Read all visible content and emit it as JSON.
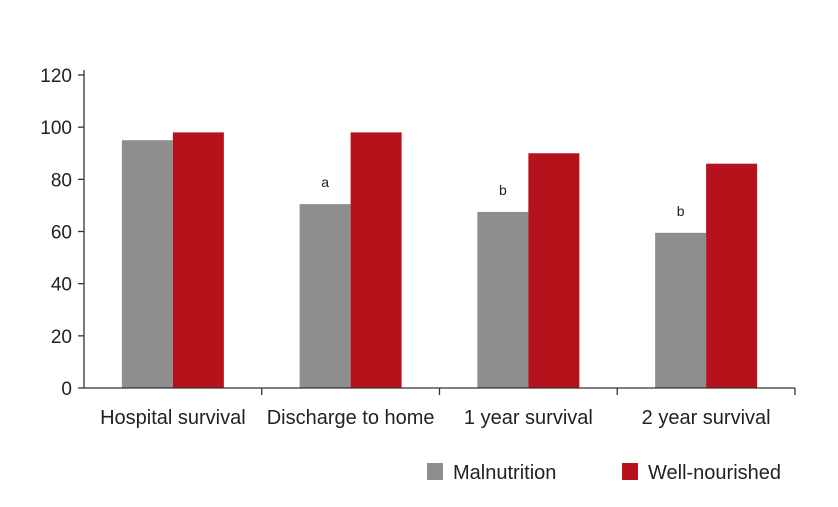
{
  "chart_data": {
    "type": "bar",
    "title": "",
    "xlabel": "",
    "ylabel": "",
    "categories": [
      "Hospital survival",
      "Discharge to home",
      "1 year survival",
      "2 year survival"
    ],
    "series": [
      {
        "name": "Malnutrition",
        "color": "#8e8e8e",
        "values": [
          95,
          70.5,
          67.5,
          59.5
        ]
      },
      {
        "name": "Well-nourished",
        "color": "#b5121b",
        "values": [
          98,
          98,
          90,
          86
        ]
      }
    ],
    "annotations": [
      "",
      "a",
      "b",
      "b"
    ],
    "ylim": [
      0,
      120
    ],
    "yticks": [
      0,
      20,
      40,
      60,
      80,
      100,
      120
    ],
    "grid": false,
    "legend_position": "bottom-right"
  }
}
